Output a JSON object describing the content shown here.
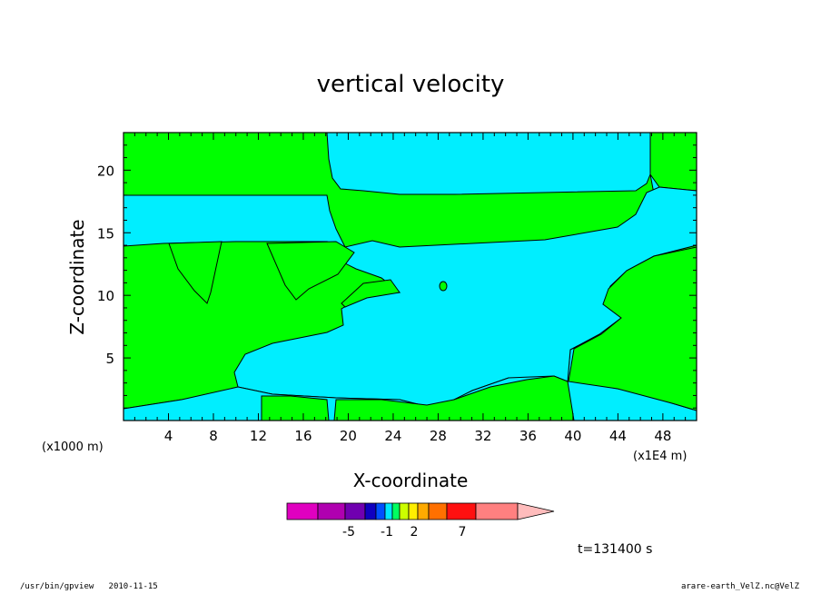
{
  "chart_data": {
    "type": "contour",
    "title": "vertical velocity",
    "xlabel": "X-coordinate",
    "ylabel": "Z-coordinate",
    "x_unit_left": "(x1000 m)",
    "x_unit_right": "(x1E4 m)",
    "xlim": [
      0,
      51
    ],
    "ylim": [
      0,
      23
    ],
    "xticks": [
      4,
      8,
      12,
      16,
      20,
      24,
      28,
      32,
      36,
      40,
      44,
      48
    ],
    "yticks": [
      5,
      10,
      15,
      20
    ],
    "time_label": "t=131400 s",
    "regions": [
      {
        "fill": "#00ff00",
        "level": "positive (upward)"
      },
      {
        "fill": "#00eeff",
        "level": "near zero / weak downward"
      }
    ],
    "colorbar": {
      "colors": [
        "#e000c0",
        "#b000b0",
        "#7000b0",
        "#1000c0",
        "#0050ff",
        "#00e8ff",
        "#00ff60",
        "#ccff00",
        "#ffee00",
        "#ffaa00",
        "#ff7000",
        "#ff1010",
        "#ff8080",
        "#ffbcbc"
      ],
      "labels": [
        "-5",
        "-1",
        "2",
        "7"
      ]
    }
  },
  "footer": {
    "left": "/usr/bin/gpview   2010-11-15",
    "right": "arare-earth_VelZ.nc@VelZ"
  }
}
